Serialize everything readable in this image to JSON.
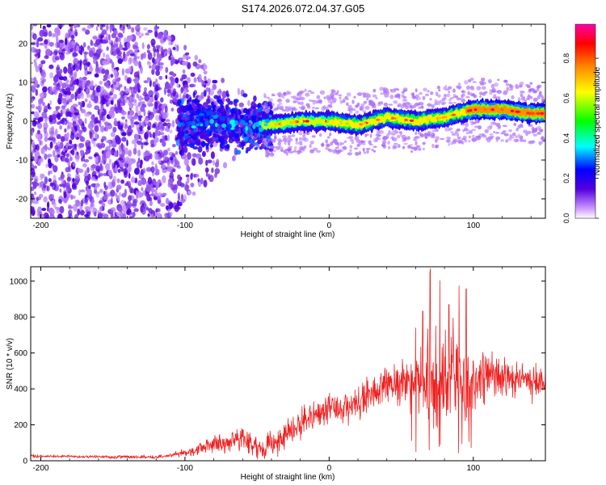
{
  "figure_title": "S174.2026.072.04.37.G05",
  "chart_data": [
    {
      "type": "heatmap",
      "title": "S174.2026.072.04.37.G05",
      "xlabel": "Height of straight line (km)",
      "ylabel": "Frequency (Hz)",
      "xlim": [
        -207,
        150
      ],
      "ylim": [
        -25,
        25
      ],
      "xticks": [
        -200,
        -100,
        0,
        100
      ],
      "xtick_labels": [
        "-200",
        "-100",
        "0",
        "100"
      ],
      "yticks": [
        -20,
        -10,
        0,
        10,
        20
      ],
      "ytick_labels": [
        "-20",
        "-10",
        "0",
        "10",
        "20"
      ],
      "colorbar": {
        "label": "Normalized spectral amplitude",
        "range": [
          0,
          0.97
        ],
        "ticks": [
          0,
          0.2,
          0.4,
          0.6,
          0.8
        ],
        "tick_labels": [
          "0.0",
          "0.2",
          "0.4",
          "0.6",
          "0.8"
        ],
        "colormap": [
          "#ffffff",
          "#cc99ff",
          "#5500dd",
          "#0000ff",
          "#00ffff",
          "#00ff00",
          "#ffff00",
          "#ff8800",
          "#ff0000",
          "#ff00aa"
        ]
      },
      "ridge_center_hz": [
        {
          "x": -100,
          "y": -1
        },
        {
          "x": -80,
          "y": 0
        },
        {
          "x": -60,
          "y": -1
        },
        {
          "x": -40,
          "y": -1
        },
        {
          "x": -20,
          "y": 0
        },
        {
          "x": 0,
          "y": 0
        },
        {
          "x": 20,
          "y": -1
        },
        {
          "x": 40,
          "y": 1
        },
        {
          "x": 60,
          "y": 0
        },
        {
          "x": 80,
          "y": 1
        },
        {
          "x": 100,
          "y": 3
        },
        {
          "x": 120,
          "y": 3
        },
        {
          "x": 140,
          "y": 2
        },
        {
          "x": 150,
          "y": 2
        }
      ]
    },
    {
      "type": "line",
      "xlabel": "Height of straight line (km)",
      "ylabel": "SNR (10 * v/v)",
      "xlim": [
        -207,
        150
      ],
      "ylim": [
        0,
        1080
      ],
      "xticks": [
        -200,
        -100,
        0,
        100
      ],
      "xtick_labels": [
        "-200",
        "-100",
        "0",
        "100"
      ],
      "yticks": [
        0,
        200,
        400,
        600,
        800,
        1000
      ],
      "ytick_labels": [
        "0",
        "200",
        "400",
        "600",
        "800",
        "1000"
      ],
      "series": [
        {
          "name": "SNR",
          "color": "#ee2222",
          "trend": [
            {
              "x": -207,
              "y": 25
            },
            {
              "x": -120,
              "y": 20
            },
            {
              "x": -100,
              "y": 45
            },
            {
              "x": -80,
              "y": 90
            },
            {
              "x": -60,
              "y": 130
            },
            {
              "x": -45,
              "y": 60
            },
            {
              "x": -35,
              "y": 120
            },
            {
              "x": -20,
              "y": 210
            },
            {
              "x": 0,
              "y": 280
            },
            {
              "x": 20,
              "y": 330
            },
            {
              "x": 40,
              "y": 430
            },
            {
              "x": 60,
              "y": 450
            },
            {
              "x": 80,
              "y": 430
            },
            {
              "x": 100,
              "y": 470
            },
            {
              "x": 120,
              "y": 470
            },
            {
              "x": 150,
              "y": 430
            }
          ],
          "noise": [
            {
              "x": -207,
              "y": 10
            },
            {
              "x": -110,
              "y": 10
            },
            {
              "x": -90,
              "y": 35
            },
            {
              "x": -60,
              "y": 70
            },
            {
              "x": -40,
              "y": 90
            },
            {
              "x": 0,
              "y": 100
            },
            {
              "x": 30,
              "y": 110
            },
            {
              "x": 60,
              "y": 160
            },
            {
              "x": 70,
              "y": 320
            },
            {
              "x": 95,
              "y": 300
            },
            {
              "x": 110,
              "y": 150
            },
            {
              "x": 150,
              "y": 90
            }
          ],
          "peaks": [
            {
              "x": 70,
              "y": 1070
            },
            {
              "x": 65,
              "y": 860
            },
            {
              "x": 77,
              "y": 1010
            },
            {
              "x": 83,
              "y": 890
            },
            {
              "x": 90,
              "y": 1000
            },
            {
              "x": 95,
              "y": 960
            },
            {
              "x": 74,
              "y": 780
            },
            {
              "x": 86,
              "y": 820
            },
            {
              "x": 60,
              "y": 760
            }
          ]
        }
      ]
    }
  ]
}
